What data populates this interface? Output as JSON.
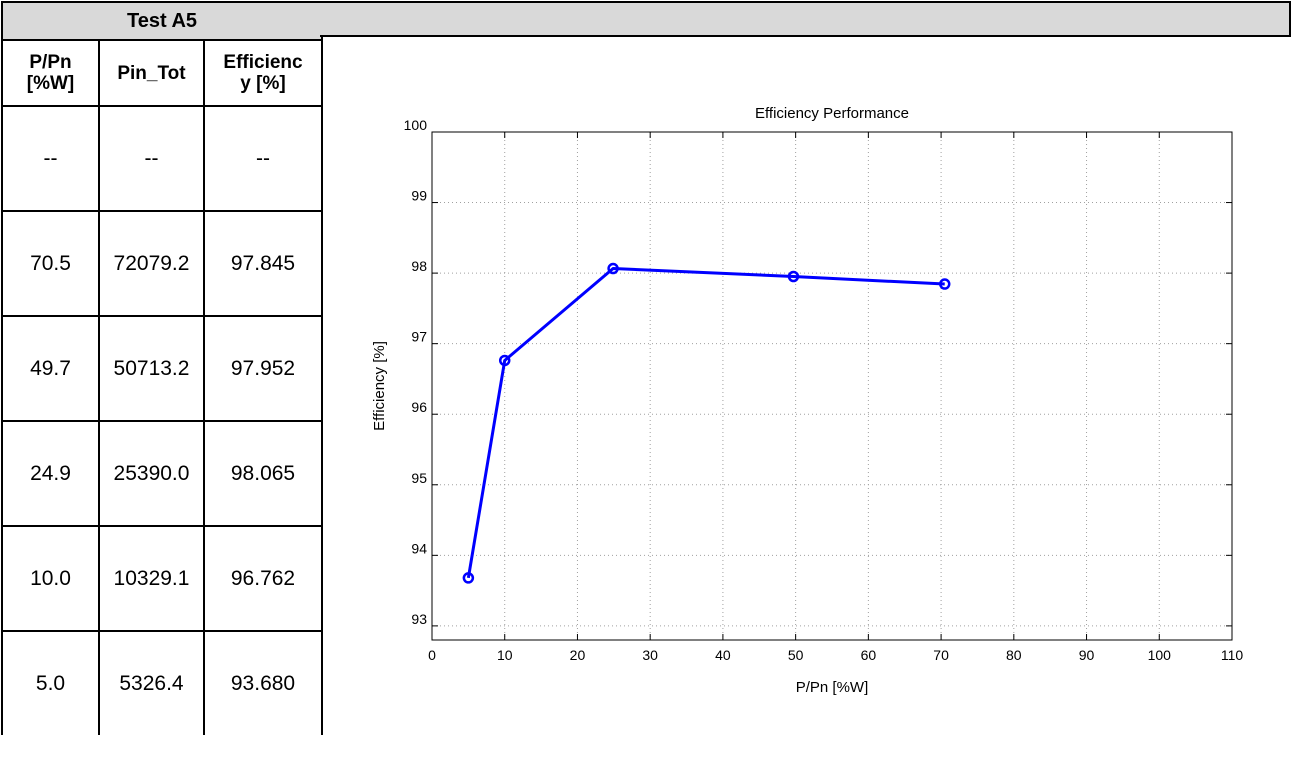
{
  "table": {
    "title": "Test A5",
    "headers": [
      {
        "line1": "P/Pn",
        "line2": "[%W]"
      },
      {
        "line1": "Pin_Tot",
        "line2": ""
      },
      {
        "line1": "Efficienc",
        "line2": "y [%]"
      }
    ],
    "rows": [
      [
        "--",
        "--",
        "--"
      ],
      [
        "70.5",
        "72079.2",
        "97.845"
      ],
      [
        "49.7",
        "50713.2",
        "97.952"
      ],
      [
        "24.9",
        "25390.0",
        "98.065"
      ],
      [
        "10.0",
        "10329.1",
        "96.762"
      ],
      [
        "5.0",
        "5326.4",
        "93.680"
      ]
    ]
  },
  "chart_data": {
    "type": "line",
    "title": "Efficiency Performance",
    "xlabel": "P/Pn [%W]",
    "ylabel": "Efficiency [%]",
    "xlim": [
      0,
      110
    ],
    "ylim": [
      92.8,
      100
    ],
    "xticks": [
      0,
      10,
      20,
      30,
      40,
      50,
      60,
      70,
      80,
      90,
      100,
      110
    ],
    "yticks": [
      93,
      94,
      95,
      96,
      97,
      98,
      99,
      100
    ],
    "grid": true,
    "series": [
      {
        "color": "#0000ff",
        "marker": "circle",
        "x": [
          5.0,
          10.0,
          24.9,
          49.7,
          70.5
        ],
        "y": [
          93.68,
          96.762,
          98.065,
          97.952,
          97.845
        ]
      }
    ]
  }
}
